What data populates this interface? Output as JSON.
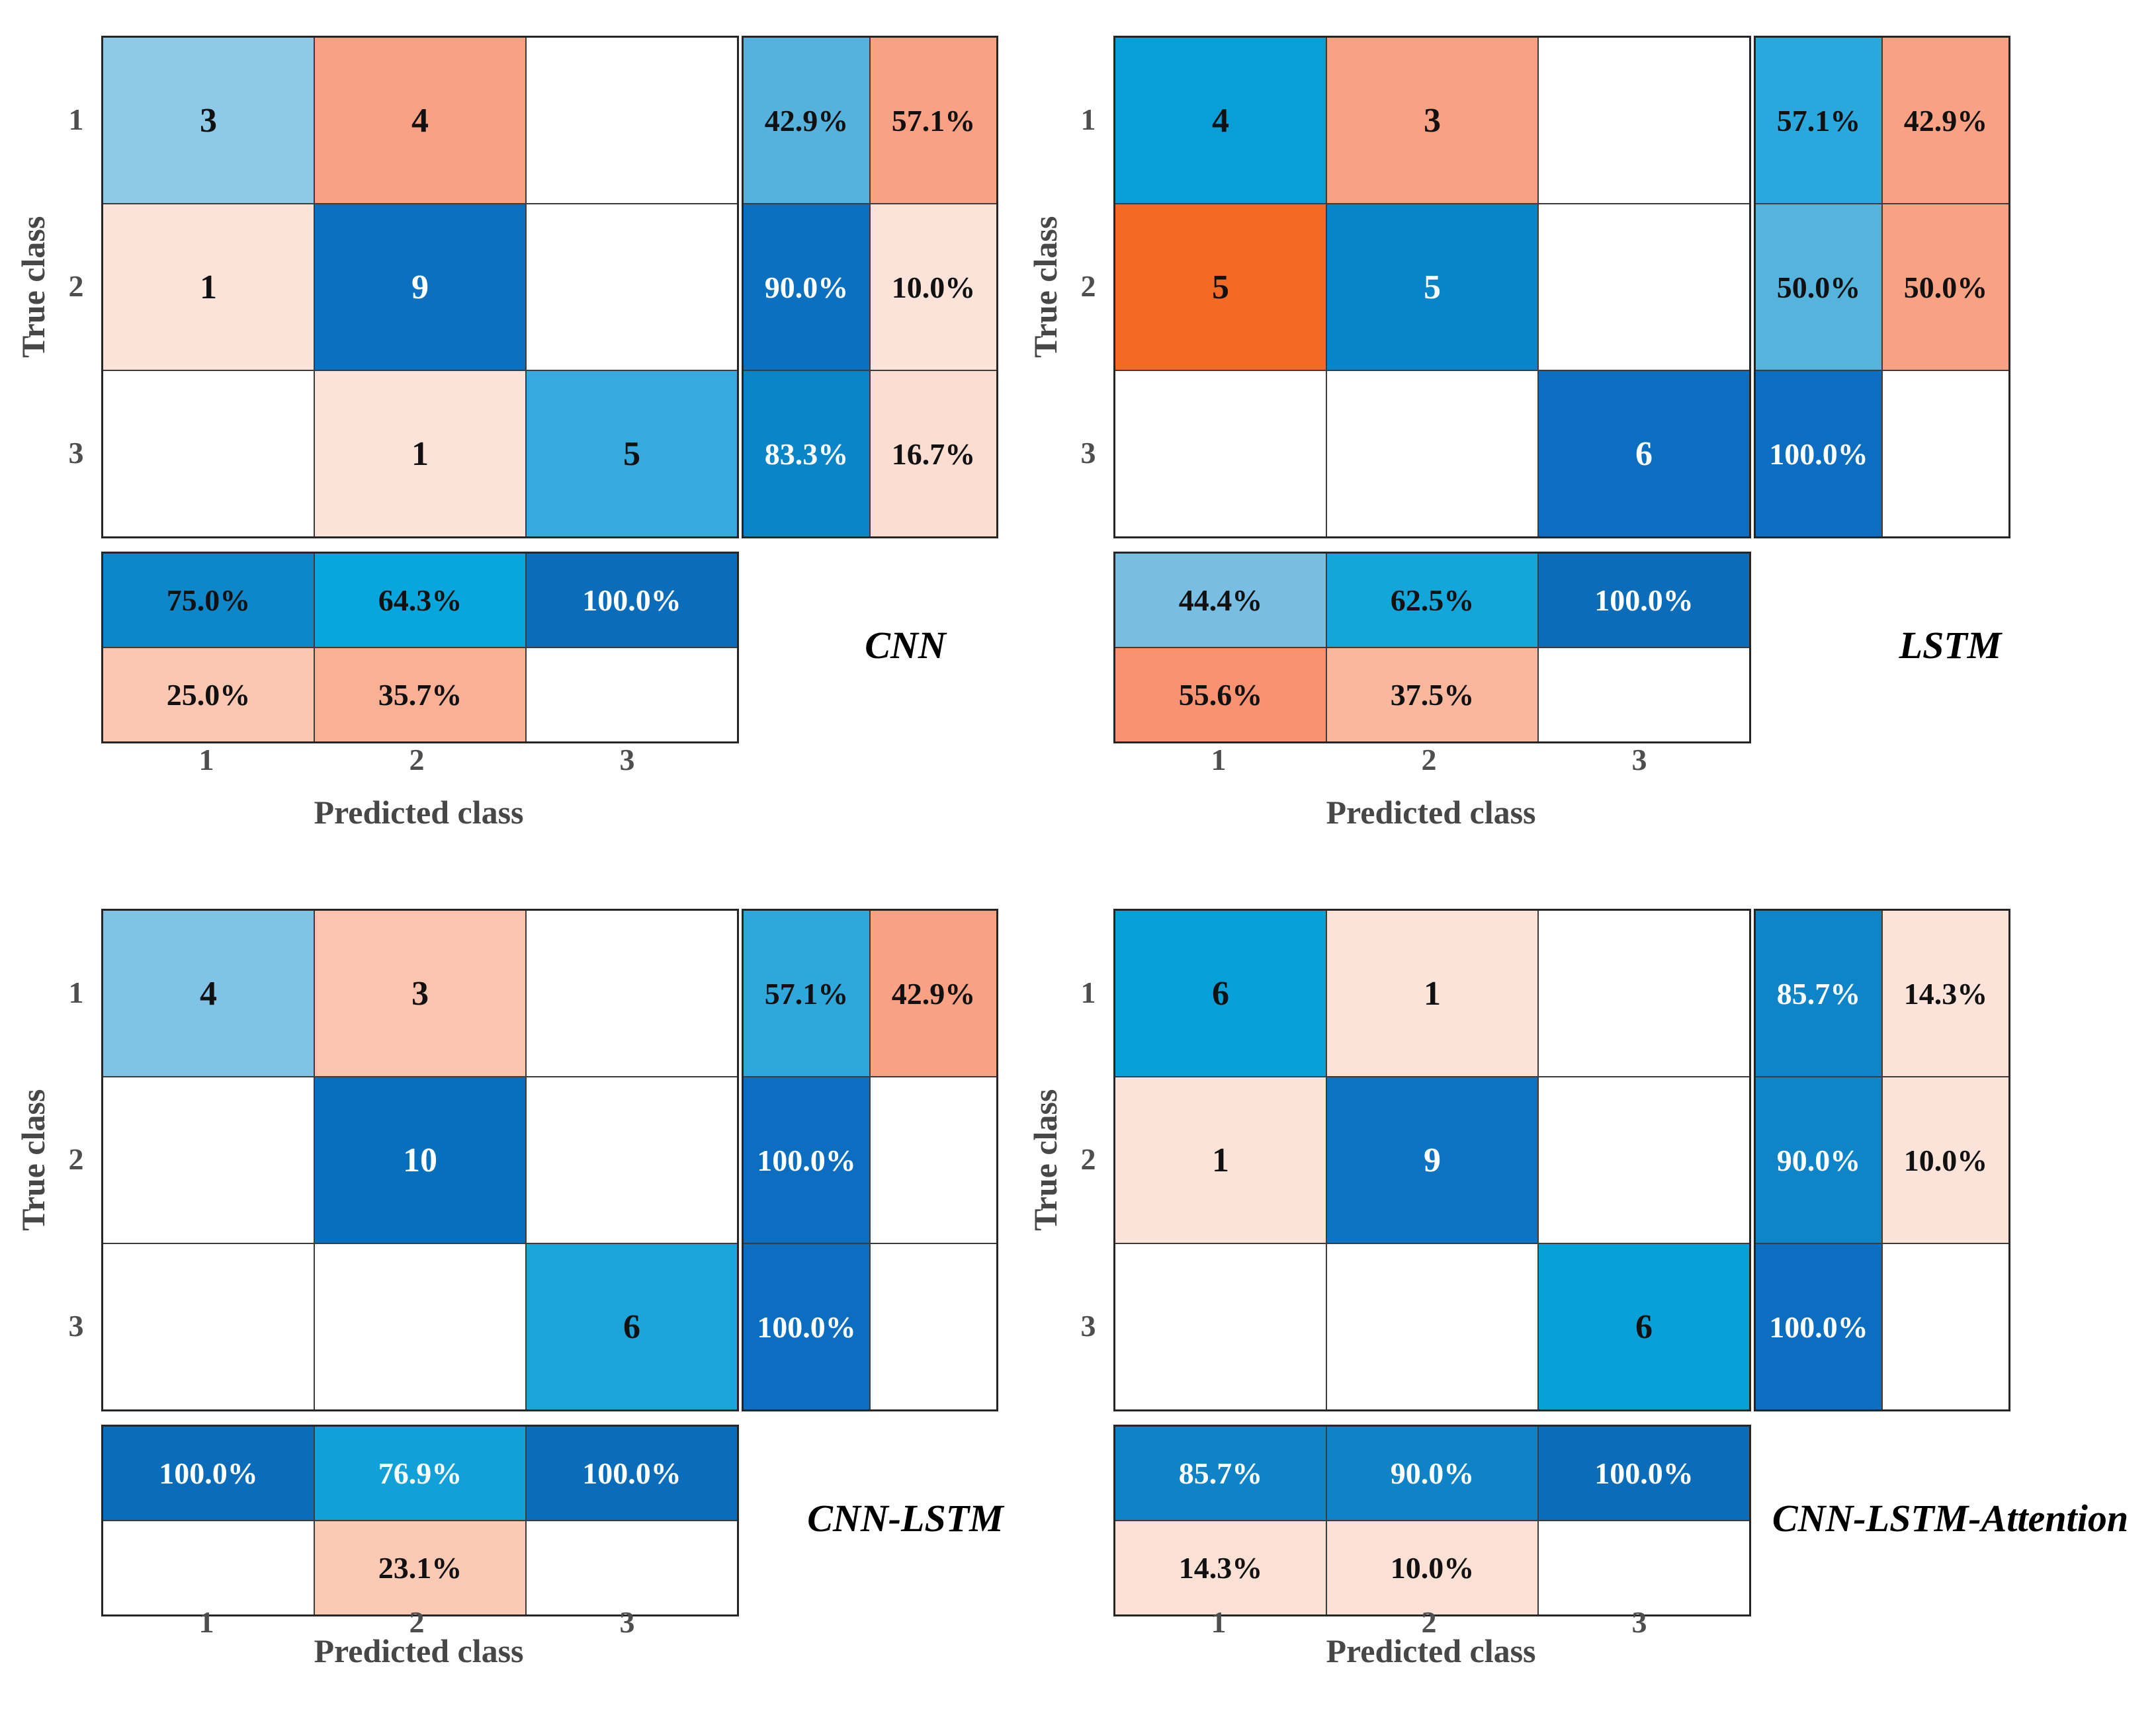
{
  "chart_data": [
    {
      "type": "heatmap",
      "title": "CNN",
      "xlabel": "Predicted class",
      "ylabel": "True class",
      "classes": [
        "1",
        "2",
        "3"
      ],
      "counts": [
        [
          3,
          4,
          null
        ],
        [
          1,
          9,
          null
        ],
        [
          null,
          1,
          5
        ]
      ],
      "row_summary_pct": [
        [
          42.9,
          57.1
        ],
        [
          90.0,
          10.0
        ],
        [
          83.3,
          16.7
        ]
      ],
      "col_summary_pct": [
        [
          75.0,
          64.3,
          100.0
        ],
        [
          25.0,
          35.7,
          null
        ]
      ]
    },
    {
      "type": "heatmap",
      "title": "LSTM",
      "xlabel": "Predicted class",
      "ylabel": "True class",
      "classes": [
        "1",
        "2",
        "3"
      ],
      "counts": [
        [
          4,
          3,
          null
        ],
        [
          5,
          5,
          null
        ],
        [
          null,
          null,
          6
        ]
      ],
      "row_summary_pct": [
        [
          57.1,
          42.9
        ],
        [
          50.0,
          50.0
        ],
        [
          100.0,
          null
        ]
      ],
      "col_summary_pct": [
        [
          44.4,
          62.5,
          100.0
        ],
        [
          55.6,
          37.5,
          null
        ]
      ]
    },
    {
      "type": "heatmap",
      "title": "CNN-LSTM",
      "xlabel": "Predicted class",
      "ylabel": "True class",
      "classes": [
        "1",
        "2",
        "3"
      ],
      "counts": [
        [
          4,
          3,
          null
        ],
        [
          null,
          10,
          null
        ],
        [
          null,
          null,
          6
        ]
      ],
      "row_summary_pct": [
        [
          57.1,
          42.9
        ],
        [
          100.0,
          null
        ],
        [
          100.0,
          null
        ]
      ],
      "col_summary_pct": [
        [
          100.0,
          76.9,
          100.0
        ],
        [
          null,
          23.1,
          null
        ]
      ]
    },
    {
      "type": "heatmap",
      "title": "CNN-LSTM-Attention",
      "xlabel": "Predicted class",
      "ylabel": "True class",
      "classes": [
        "1",
        "2",
        "3"
      ],
      "counts": [
        [
          6,
          1,
          null
        ],
        [
          1,
          9,
          null
        ],
        [
          null,
          null,
          6
        ]
      ],
      "row_summary_pct": [
        [
          85.7,
          14.3
        ],
        [
          90.0,
          10.0
        ],
        [
          100.0,
          null
        ]
      ],
      "col_summary_pct": [
        [
          85.7,
          90.0,
          100.0
        ],
        [
          14.3,
          10.0,
          null
        ]
      ]
    }
  ],
  "palette": {
    "dark_blue": "#0b6cba",
    "mid_blue": "#0d85c8",
    "cyan_blue": "#07a0d7",
    "light_blue": "#80c4e5",
    "strong_orange": "#f46a24",
    "salmon": "#f9a183",
    "light_salmon": "#fbc7b0",
    "pale_pink": "#fbe3da",
    "grid_line": "#3c3c3c",
    "axis_text": "#4e4e4e"
  },
  "panels": [
    {
      "title": "CNN",
      "y_label": "True class",
      "x_label": "Predicted class",
      "row_ticks": [
        "1",
        "2",
        "3"
      ],
      "col_ticks": [
        "1",
        "2",
        "3"
      ],
      "matrix": [
        [
          {
            "v": "3",
            "bg": "#8ec9e8",
            "fg": "#111111"
          },
          {
            "v": "4",
            "bg": "#f9a183",
            "fg": "#111111"
          },
          {}
        ],
        [
          {
            "v": "1",
            "bg": "#fbe3da",
            "fg": "#111111"
          },
          {
            "v": "9",
            "bg": "#0c70c0",
            "fg": "#ffffff"
          },
          {}
        ],
        [
          {},
          {
            "v": "1",
            "bg": "#fbe3da",
            "fg": "#111111"
          },
          {
            "v": "5",
            "bg": "#36a9dd",
            "fg": "#111111"
          }
        ]
      ],
      "row_summary": [
        [
          {
            "v": "42.9%",
            "bg": "#55b2dd",
            "fg": "#111111"
          },
          {
            "v": "57.1%",
            "bg": "#f9a183",
            "fg": "#111111"
          }
        ],
        [
          {
            "v": "90.0%",
            "bg": "#0c70c0",
            "fg": "#ffffff"
          },
          {
            "v": "10.0%",
            "bg": "#fbe3da",
            "fg": "#111111"
          }
        ],
        [
          {
            "v": "83.3%",
            "bg": "#0a85c8",
            "fg": "#ffffff"
          },
          {
            "v": "16.7%",
            "bg": "#fbddd1",
            "fg": "#111111"
          }
        ]
      ],
      "col_summary": [
        [
          {
            "v": "75.0%",
            "bg": "#0e87c9",
            "fg": "#111111"
          },
          {
            "v": "64.3%",
            "bg": "#06a7dc",
            "fg": "#111111"
          },
          {
            "v": "100.0%",
            "bg": "#0b6cba",
            "fg": "#ffffff"
          }
        ],
        [
          {
            "v": "25.0%",
            "bg": "#fbc7b0",
            "fg": "#111111"
          },
          {
            "v": "35.7%",
            "bg": "#f9b094",
            "fg": "#111111"
          },
          {}
        ]
      ]
    },
    {
      "title": "LSTM",
      "y_label": "True class",
      "x_label": "Predicted class",
      "row_ticks": [
        "1",
        "2",
        "3"
      ],
      "col_ticks": [
        "1",
        "2",
        "3"
      ],
      "matrix": [
        [
          {
            "v": "4",
            "bg": "#0a9ed8",
            "fg": "#111111"
          },
          {
            "v": "3",
            "bg": "#f9a183",
            "fg": "#111111"
          },
          {}
        ],
        [
          {
            "v": "5",
            "bg": "#f46a24",
            "fg": "#111111"
          },
          {
            "v": "5",
            "bg": "#0884c8",
            "fg": "#ffffff"
          },
          {}
        ],
        [
          {},
          {},
          {
            "v": "6",
            "bg": "#0b6ec0",
            "fg": "#ffffff"
          }
        ]
      ],
      "row_summary": [
        [
          {
            "v": "57.1%",
            "bg": "#28a8dc",
            "fg": "#111111"
          },
          {
            "v": "42.9%",
            "bg": "#f9a183",
            "fg": "#111111"
          }
        ],
        [
          {
            "v": "50.0%",
            "bg": "#54b4de",
            "fg": "#111111"
          },
          {
            "v": "50.0%",
            "bg": "#f9a183",
            "fg": "#111111"
          }
        ],
        [
          {
            "v": "100.0%",
            "bg": "#0b6ec0",
            "fg": "#ffffff"
          },
          {}
        ]
      ],
      "col_summary": [
        [
          {
            "v": "44.4%",
            "bg": "#77bee2",
            "fg": "#111111"
          },
          {
            "v": "62.5%",
            "bg": "#12a6da",
            "fg": "#111111"
          },
          {
            "v": "100.0%",
            "bg": "#0b6cba",
            "fg": "#ffffff"
          }
        ],
        [
          {
            "v": "55.6%",
            "bg": "#f89271",
            "fg": "#111111"
          },
          {
            "v": "37.5%",
            "bg": "#f9b89e",
            "fg": "#111111"
          },
          {}
        ]
      ]
    },
    {
      "title": "CNN-LSTM",
      "y_label": "True class",
      "x_label": "Predicted class",
      "row_ticks": [
        "1",
        "2",
        "3"
      ],
      "col_ticks": [
        "1",
        "2",
        "3"
      ],
      "matrix": [
        [
          {
            "v": "4",
            "bg": "#80c4e5",
            "fg": "#111111"
          },
          {
            "v": "3",
            "bg": "#fcc3ae",
            "fg": "#111111"
          },
          {}
        ],
        [
          {},
          {
            "v": "10",
            "bg": "#0670bf",
            "fg": "#ffffff"
          },
          {}
        ],
        [
          {},
          {},
          {
            "v": "6",
            "bg": "#1ca5da",
            "fg": "#111111"
          }
        ]
      ],
      "row_summary": [
        [
          {
            "v": "57.1%",
            "bg": "#2ea7da",
            "fg": "#111111"
          },
          {
            "v": "42.9%",
            "bg": "#f9a183",
            "fg": "#111111"
          }
        ],
        [
          {
            "v": "100.0%",
            "bg": "#0b6ec0",
            "fg": "#ffffff"
          },
          {}
        ],
        [
          {
            "v": "100.0%",
            "bg": "#0b6ec0",
            "fg": "#ffffff"
          },
          {}
        ]
      ],
      "col_summary": [
        [
          {
            "v": "100.0%",
            "bg": "#0b6cba",
            "fg": "#ffffff"
          },
          {
            "v": "76.9%",
            "bg": "#0fa1d7",
            "fg": "#ffffff"
          },
          {
            "v": "100.0%",
            "bg": "#0b6cba",
            "fg": "#ffffff"
          }
        ],
        [
          {},
          {
            "v": "23.1%",
            "bg": "#fbcab4",
            "fg": "#111111"
          },
          {}
        ]
      ]
    },
    {
      "title": "CNN-LSTM-Attention",
      "y_label": "True class",
      "x_label": "Predicted class",
      "row_ticks": [
        "1",
        "2",
        "3"
      ],
      "col_ticks": [
        "1",
        "2",
        "3"
      ],
      "matrix": [
        [
          {
            "v": "6",
            "bg": "#07a0d7",
            "fg": "#111111"
          },
          {
            "v": "1",
            "bg": "#fbe3da",
            "fg": "#111111"
          },
          {}
        ],
        [
          {
            "v": "1",
            "bg": "#fbe3da",
            "fg": "#111111"
          },
          {
            "v": "9",
            "bg": "#0c74c2",
            "fg": "#ffffff"
          },
          {}
        ],
        [
          {},
          {},
          {
            "v": "6",
            "bg": "#07a0d7",
            "fg": "#111111"
          }
        ]
      ],
      "row_summary": [
        [
          {
            "v": "85.7%",
            "bg": "#0d85c8",
            "fg": "#ffffff"
          },
          {
            "v": "14.3%",
            "bg": "#fbe3da",
            "fg": "#111111"
          }
        ],
        [
          {
            "v": "90.0%",
            "bg": "#0d85c8",
            "fg": "#ffffff"
          },
          {
            "v": "10.0%",
            "bg": "#fbe3da",
            "fg": "#111111"
          }
        ],
        [
          {
            "v": "100.0%",
            "bg": "#0b6ec0",
            "fg": "#ffffff"
          },
          {}
        ]
      ],
      "col_summary": [
        [
          {
            "v": "85.7%",
            "bg": "#0e83c6",
            "fg": "#ffffff"
          },
          {
            "v": "90.0%",
            "bg": "#0e83c6",
            "fg": "#ffffff"
          },
          {
            "v": "100.0%",
            "bg": "#0b6cba",
            "fg": "#ffffff"
          }
        ],
        [
          {
            "v": "14.3%",
            "bg": "#fbe0d6",
            "fg": "#111111"
          },
          {
            "v": "10.0%",
            "bg": "#fbe0d6",
            "fg": "#111111"
          },
          {}
        ]
      ]
    }
  ]
}
